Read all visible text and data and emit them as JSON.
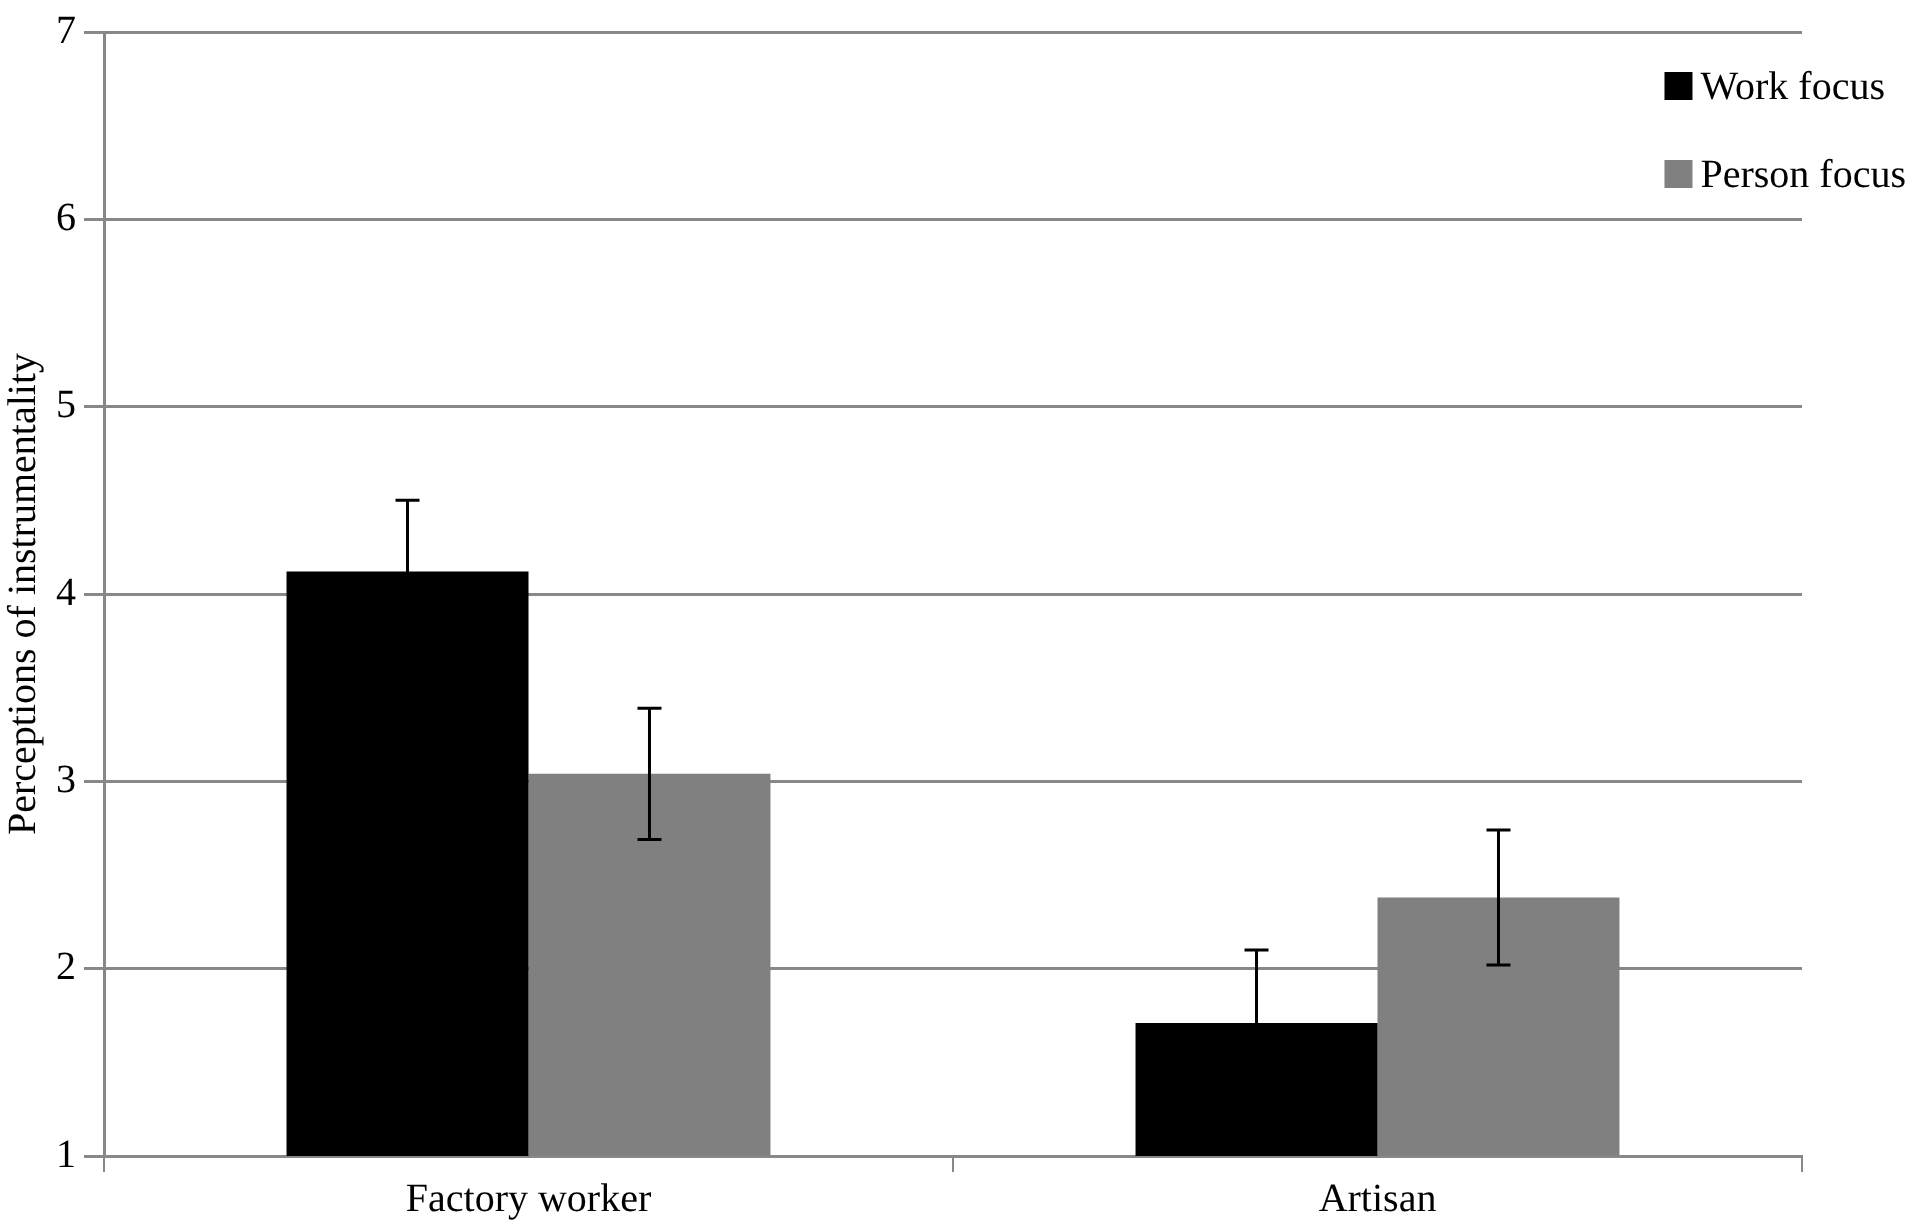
{
  "chart_data": {
    "type": "bar",
    "ylabel": "Perceptions of instrumentality",
    "categories": [
      "Factory worker",
      "Artisan"
    ],
    "series": [
      {
        "name": "Work focus",
        "color": "#000000",
        "values": [
          4.12,
          1.71
        ],
        "errors": [
          0.38,
          0.39
        ]
      },
      {
        "name": "Person focus",
        "color": "#808080",
        "values": [
          3.04,
          2.38
        ],
        "errors": [
          0.35,
          0.36
        ]
      }
    ],
    "ylim": [
      1,
      7
    ],
    "yticks": [
      1,
      2,
      3,
      4,
      5,
      6,
      7
    ],
    "grid": "y",
    "legend": "top right"
  }
}
